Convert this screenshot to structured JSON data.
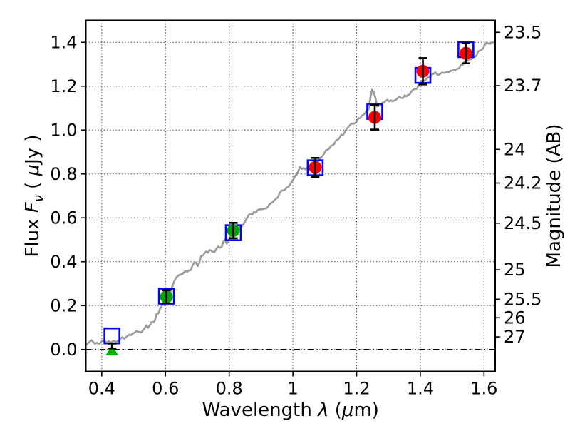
{
  "figure": {
    "background": "#ffffff"
  },
  "chart_data": {
    "type": "line+scatter",
    "title": "",
    "xlabel_segments": [
      {
        "t": "Wavelength  ",
        "italic": false
      },
      {
        "t": "λ",
        "italic": true
      },
      {
        "t": " (",
        "italic": false
      },
      {
        "t": "μ",
        "italic": true
      },
      {
        "t": "m)",
        "italic": false
      }
    ],
    "ylabel_left_segments": [
      {
        "t": "Flux  ",
        "italic": false
      },
      {
        "t": "F",
        "italic": true
      },
      {
        "t": "ν",
        "italic": true,
        "sub": true
      },
      {
        "t": "  ( ",
        "italic": false
      },
      {
        "t": "μ",
        "italic": true
      },
      {
        "t": "Jy )",
        "italic": false
      }
    ],
    "ylabel_right": "Magnitude (AB)",
    "xlim": [
      0.35,
      1.635
    ],
    "ylim_flux": [
      -0.1,
      1.5
    ],
    "x_ticks": [
      {
        "v": 0.4,
        "label": "0.4"
      },
      {
        "v": 0.6,
        "label": "0.6"
      },
      {
        "v": 0.8,
        "label": "0.8"
      },
      {
        "v": 1.0,
        "label": "1"
      },
      {
        "v": 1.2,
        "label": "1.2"
      },
      {
        "v": 1.4,
        "label": "1.4"
      },
      {
        "v": 1.6,
        "label": "1.6"
      }
    ],
    "y_ticks_left": [
      {
        "v": 0.0,
        "label": "0.0"
      },
      {
        "v": 0.2,
        "label": "0.2"
      },
      {
        "v": 0.4,
        "label": "0.4"
      },
      {
        "v": 0.6,
        "label": "0.6"
      },
      {
        "v": 0.8,
        "label": "0.8"
      },
      {
        "v": 1.0,
        "label": "1.0"
      },
      {
        "v": 1.2,
        "label": "1.2"
      },
      {
        "v": 1.4,
        "label": "1.4"
      }
    ],
    "y_ticks_right_mag": [
      {
        "m": 23.5,
        "label": "23.5"
      },
      {
        "m": 23.7,
        "label": "23.7"
      },
      {
        "m": 24.0,
        "label": "24"
      },
      {
        "m": 24.2,
        "label": "24.2"
      },
      {
        "m": 24.5,
        "label": "24.5"
      },
      {
        "m": 25.0,
        "label": "25"
      },
      {
        "m": 25.5,
        "label": "25.5"
      },
      {
        "m": 26.0,
        "label": "26"
      },
      {
        "m": 27.0,
        "label": "27"
      }
    ],
    "ab_zeropoint_ujy": 23.9,
    "grid": {
      "on": true,
      "style": "dotted",
      "color": "#444444"
    },
    "zero_flux_line": {
      "y": 0.0,
      "style": "dash-dot",
      "color": "#000000"
    },
    "spectrum": {
      "name": "model-spectrum",
      "color": "#9a9a9a",
      "line_width": 2.6,
      "noise_amplitude": 0.008,
      "points": [
        [
          0.352,
          0.028
        ],
        [
          0.365,
          0.034
        ],
        [
          0.378,
          0.03
        ],
        [
          0.392,
          0.026
        ],
        [
          0.405,
          0.042
        ],
        [
          0.418,
          0.036
        ],
        [
          0.43,
          0.03
        ],
        [
          0.445,
          0.044
        ],
        [
          0.46,
          0.05
        ],
        [
          0.478,
          0.058
        ],
        [
          0.495,
          0.068
        ],
        [
          0.512,
          0.078
        ],
        [
          0.528,
          0.088
        ],
        [
          0.54,
          0.112
        ],
        [
          0.548,
          0.1
        ],
        [
          0.556,
          0.128
        ],
        [
          0.563,
          0.118
        ],
        [
          0.57,
          0.152
        ],
        [
          0.578,
          0.168
        ],
        [
          0.586,
          0.196
        ],
        [
          0.595,
          0.208
        ],
        [
          0.603,
          0.235
        ],
        [
          0.612,
          0.252
        ],
        [
          0.622,
          0.3
        ],
        [
          0.632,
          0.33
        ],
        [
          0.642,
          0.345
        ],
        [
          0.652,
          0.352
        ],
        [
          0.662,
          0.36
        ],
        [
          0.672,
          0.352
        ],
        [
          0.682,
          0.368
        ],
        [
          0.692,
          0.398
        ],
        [
          0.702,
          0.38
        ],
        [
          0.712,
          0.425
        ],
        [
          0.725,
          0.438
        ],
        [
          0.738,
          0.452
        ],
        [
          0.75,
          0.442
        ],
        [
          0.762,
          0.455
        ],
        [
          0.775,
          0.468
        ],
        [
          0.785,
          0.5
        ],
        [
          0.795,
          0.482
        ],
        [
          0.806,
          0.515
        ],
        [
          0.818,
          0.54
        ],
        [
          0.83,
          0.548
        ],
        [
          0.842,
          0.562
        ],
        [
          0.855,
          0.59
        ],
        [
          0.868,
          0.618
        ],
        [
          0.882,
          0.625
        ],
        [
          0.895,
          0.638
        ],
        [
          0.908,
          0.645
        ],
        [
          0.922,
          0.652
        ],
        [
          0.935,
          0.665
        ],
        [
          0.95,
          0.698
        ],
        [
          0.965,
          0.722
        ],
        [
          0.98,
          0.742
        ],
        [
          0.995,
          0.758
        ],
        [
          1.01,
          0.8
        ],
        [
          1.022,
          0.828
        ],
        [
          1.035,
          0.818
        ],
        [
          1.048,
          0.838
        ],
        [
          1.062,
          0.842
        ],
        [
          1.075,
          0.858
        ],
        [
          1.09,
          0.88
        ],
        [
          1.105,
          0.912
        ],
        [
          1.12,
          0.935
        ],
        [
          1.135,
          0.952
        ],
        [
          1.15,
          0.968
        ],
        [
          1.165,
          0.992
        ],
        [
          1.18,
          1.018
        ],
        [
          1.195,
          1.035
        ],
        [
          1.21,
          1.058
        ],
        [
          1.225,
          1.082
        ],
        [
          1.24,
          1.098
        ],
        [
          1.247,
          1.205
        ],
        [
          1.252,
          1.16
        ],
        [
          1.256,
          1.178
        ],
        [
          1.262,
          1.102
        ],
        [
          1.275,
          1.108
        ],
        [
          1.29,
          1.125
        ],
        [
          1.305,
          1.132
        ],
        [
          1.32,
          1.14
        ],
        [
          1.335,
          1.148
        ],
        [
          1.35,
          1.155
        ],
        [
          1.365,
          1.162
        ],
        [
          1.38,
          1.18
        ],
        [
          1.395,
          1.205
        ],
        [
          1.41,
          1.228
        ],
        [
          1.425,
          1.242
        ],
        [
          1.44,
          1.252
        ],
        [
          1.455,
          1.258
        ],
        [
          1.47,
          1.265
        ],
        [
          1.485,
          1.268
        ],
        [
          1.5,
          1.272
        ],
        [
          1.515,
          1.282
        ],
        [
          1.53,
          1.3
        ],
        [
          1.545,
          1.315
        ],
        [
          1.56,
          1.33
        ],
        [
          1.575,
          1.348
        ],
        [
          1.59,
          1.372
        ],
        [
          1.605,
          1.392
        ],
        [
          1.62,
          1.402
        ],
        [
          1.632,
          1.41
        ]
      ]
    },
    "series": [
      {
        "name": "model-photometry-squares",
        "marker": "open-square",
        "color": "#0000ff",
        "marker_size": 21,
        "points": [
          {
            "x": 0.432,
            "y": 0.062
          },
          {
            "x": 0.603,
            "y": 0.243
          },
          {
            "x": 0.813,
            "y": 0.532
          },
          {
            "x": 1.07,
            "y": 0.828
          },
          {
            "x": 1.257,
            "y": 1.085
          },
          {
            "x": 1.408,
            "y": 1.249
          },
          {
            "x": 1.543,
            "y": 1.367
          }
        ]
      },
      {
        "name": "observed-photometry-optical",
        "marker": "filled-circle",
        "color": "#00a000",
        "marker_size": 18,
        "points": [
          {
            "x": 0.603,
            "y": 0.24,
            "err": 0.03
          },
          {
            "x": 0.813,
            "y": 0.542,
            "err": 0.035
          }
        ]
      },
      {
        "name": "observed-photometry-infrared",
        "marker": "filled-circle",
        "color": "#ff0000",
        "marker_size": 18,
        "points": [
          {
            "x": 1.07,
            "y": 0.83,
            "err": 0.043
          },
          {
            "x": 1.257,
            "y": 1.058,
            "err": 0.056
          },
          {
            "x": 1.408,
            "y": 1.268,
            "err": 0.06
          },
          {
            "x": 1.543,
            "y": 1.35,
            "err": 0.046
          }
        ]
      },
      {
        "name": "upper-limit",
        "marker": "triangle-up",
        "color": "#00b300",
        "marker_size": 17,
        "points": [
          {
            "x": 0.432,
            "y": -0.007,
            "bar_low": 0.005,
            "bar_high": 0.027
          }
        ]
      }
    ],
    "error_bar_color": "#000000",
    "legend": {
      "visible": false
    }
  }
}
